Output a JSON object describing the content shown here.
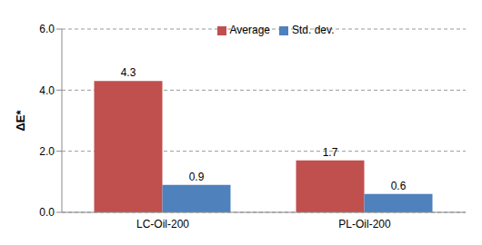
{
  "chart_data": {
    "type": "bar",
    "y_label": "ΔE*",
    "categories": [
      "LC-Oil-200",
      "PL-Oil-200"
    ],
    "series": [
      {
        "name": "Average",
        "color": "#c0504d",
        "values": [
          4.3,
          1.7
        ]
      },
      {
        "name": "Std. dev.",
        "color": "#4f81bd",
        "values": [
          0.9,
          0.6
        ]
      }
    ],
    "ylim": [
      0,
      6
    ],
    "yticks": [
      {
        "value": 0,
        "label": "0.0"
      },
      {
        "value": 2,
        "label": "2.0"
      },
      {
        "value": 4,
        "label": "4.0"
      },
      {
        "value": 6,
        "label": "6.0"
      }
    ],
    "grid": true,
    "legend": "top",
    "data_labels": true
  }
}
